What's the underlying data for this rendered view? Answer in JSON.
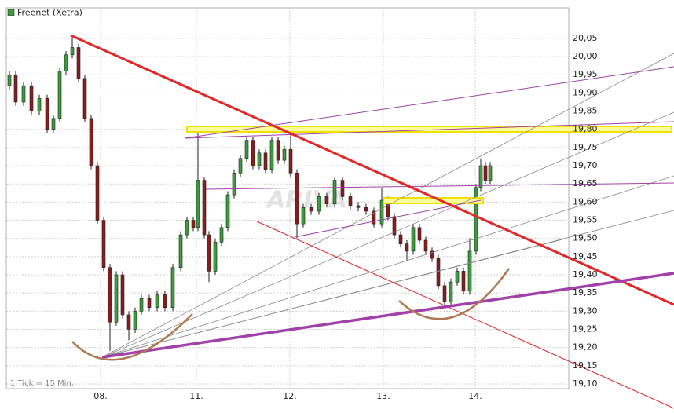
{
  "chart_data": {
    "type": "candlestick",
    "legend": "Freenet (Xetra)",
    "tick_info": "1 Tick = 15 Min.",
    "watermark": "ARIVA",
    "up_color": "#3c9c3c",
    "down_color": "#8c1c1c",
    "legend_color": "#3c9c3c",
    "grid": true,
    "xlim": [
      0,
      716
    ],
    "xticks": [
      {
        "value": 120,
        "label": "08."
      },
      {
        "value": 242,
        "label": "11."
      },
      {
        "value": 361,
        "label": "12."
      },
      {
        "value": 480,
        "label": "13."
      },
      {
        "value": 597,
        "label": "14."
      }
    ],
    "ylim": [
      19.087,
      20.134
    ],
    "yticks": [
      {
        "value": 19.1,
        "label": "19,10"
      },
      {
        "value": 19.15,
        "label": "19,15"
      },
      {
        "value": 19.2,
        "label": "19,20"
      },
      {
        "value": 19.25,
        "label": "19,25"
      },
      {
        "value": 19.3,
        "label": "19,30"
      },
      {
        "value": 19.35,
        "label": "19,35"
      },
      {
        "value": 19.4,
        "label": "19,40"
      },
      {
        "value": 19.45,
        "label": "19,45"
      },
      {
        "value": 19.5,
        "label": "19,50"
      },
      {
        "value": 19.55,
        "label": "19,55"
      },
      {
        "value": 19.6,
        "label": "19,60"
      },
      {
        "value": 19.65,
        "label": "19,65"
      },
      {
        "value": 19.7,
        "label": "19,70"
      },
      {
        "value": 19.75,
        "label": "19,75"
      },
      {
        "value": 19.8,
        "label": "19,80"
      },
      {
        "value": 19.85,
        "label": "19,85"
      },
      {
        "value": 19.9,
        "label": "19,90"
      },
      {
        "value": 19.95,
        "label": "19,95"
      },
      {
        "value": 20.0,
        "label": "20,00"
      },
      {
        "value": 20.05,
        "label": "20,05"
      }
    ],
    "x": [
      4,
      12,
      22,
      32,
      42,
      52,
      60,
      68,
      76,
      84,
      92,
      100,
      108,
      116,
      124,
      132,
      140,
      148,
      156,
      164,
      172,
      182,
      192,
      202,
      212,
      222,
      230,
      238,
      244,
      252,
      258,
      266,
      274,
      282,
      290,
      298,
      306,
      314,
      322,
      330,
      338,
      346,
      354,
      362,
      370,
      378,
      388,
      398,
      408,
      418,
      428,
      438,
      448,
      458,
      468,
      478,
      486,
      494,
      502,
      510,
      518,
      526,
      534,
      542,
      550,
      558,
      566,
      574,
      582,
      590,
      598,
      604,
      610,
      616
    ],
    "open": [
      19.92,
      19.95,
      19.875,
      19.92,
      19.85,
      19.885,
      19.8,
      19.83,
      19.96,
      20.005,
      20.025,
      19.94,
      19.83,
      19.7,
      19.55,
      19.42,
      19.27,
      19.4,
      19.29,
      19.25,
      19.3,
      19.335,
      19.31,
      19.345,
      19.31,
      19.42,
      19.51,
      19.55,
      19.53,
      19.66,
      19.51,
      19.41,
      19.49,
      19.53,
      19.62,
      19.68,
      19.72,
      19.77,
      19.7,
      19.735,
      19.69,
      19.77,
      19.715,
      19.745,
      19.68,
      19.54,
      19.585,
      19.575,
      19.615,
      19.595,
      19.66,
      19.615,
      19.59,
      19.585,
      19.575,
      19.54,
      19.605,
      19.56,
      19.51,
      19.485,
      19.465,
      19.53,
      19.495,
      19.465,
      19.445,
      19.37,
      19.325,
      19.38,
      19.41,
      19.355,
      19.465,
      19.64,
      19.7,
      19.66
    ],
    "high": [
      19.96,
      19.96,
      19.93,
      19.93,
      19.895,
      19.895,
      19.84,
      19.97,
      20.015,
      20.05,
      20.035,
      19.95,
      19.84,
      19.71,
      19.56,
      19.43,
      19.41,
      19.41,
      19.3,
      19.31,
      19.345,
      19.345,
      19.355,
      19.355,
      19.43,
      19.52,
      19.56,
      19.56,
      19.79,
      19.67,
      19.52,
      19.5,
      19.54,
      19.63,
      19.69,
      19.73,
      19.78,
      19.78,
      19.745,
      19.745,
      19.78,
      19.78,
      19.755,
      19.79,
      19.69,
      19.595,
      19.595,
      19.625,
      19.625,
      19.67,
      19.67,
      19.625,
      19.6,
      19.595,
      19.585,
      19.64,
      19.615,
      19.57,
      19.52,
      19.495,
      19.54,
      19.54,
      19.505,
      19.475,
      19.455,
      19.38,
      19.39,
      19.42,
      19.42,
      19.5,
      19.65,
      19.72,
      19.71,
      19.71
    ],
    "low": [
      19.91,
      19.865,
      19.865,
      19.84,
      19.84,
      19.79,
      19.79,
      19.82,
      19.95,
      19.995,
      19.93,
      19.82,
      19.69,
      19.54,
      19.41,
      19.19,
      19.26,
      19.28,
      19.22,
      19.24,
      19.29,
      19.3,
      19.3,
      19.3,
      19.3,
      19.41,
      19.5,
      19.52,
      19.52,
      19.5,
      19.38,
      19.4,
      19.48,
      19.52,
      19.61,
      19.67,
      19.71,
      19.69,
      19.69,
      19.68,
      19.68,
      19.705,
      19.705,
      19.67,
      19.5,
      19.53,
      19.565,
      19.565,
      19.585,
      19.585,
      19.605,
      19.58,
      19.575,
      19.565,
      19.53,
      19.53,
      19.55,
      19.5,
      19.475,
      19.44,
      19.455,
      19.485,
      19.455,
      19.435,
      19.36,
      19.315,
      19.315,
      19.37,
      19.345,
      19.345,
      19.455,
      19.63,
      19.65,
      19.65
    ],
    "close": [
      19.95,
      19.875,
      19.92,
      19.85,
      19.885,
      19.8,
      19.83,
      19.96,
      20.005,
      20.025,
      19.94,
      19.83,
      19.7,
      19.55,
      19.42,
      19.27,
      19.4,
      19.29,
      19.25,
      19.3,
      19.335,
      19.31,
      19.345,
      19.31,
      19.42,
      19.51,
      19.55,
      19.53,
      19.66,
      19.51,
      19.41,
      19.49,
      19.53,
      19.62,
      19.68,
      19.72,
      19.77,
      19.7,
      19.735,
      19.69,
      19.77,
      19.715,
      19.745,
      19.68,
      19.54,
      19.585,
      19.575,
      19.615,
      19.595,
      19.66,
      19.615,
      19.59,
      19.585,
      19.575,
      19.54,
      19.605,
      19.56,
      19.51,
      19.485,
      19.465,
      19.53,
      19.495,
      19.465,
      19.445,
      19.37,
      19.325,
      19.38,
      19.41,
      19.355,
      19.465,
      19.64,
      19.7,
      19.66,
      19.7
    ]
  }
}
